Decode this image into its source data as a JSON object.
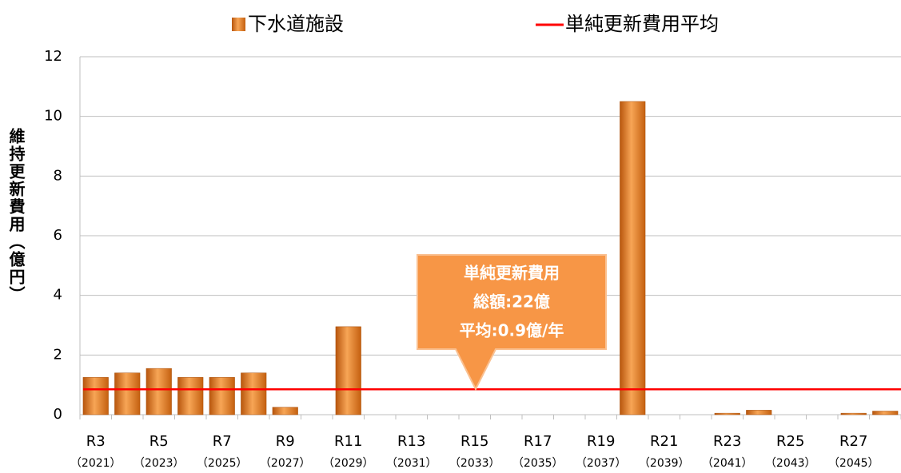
{
  "chart_data": {
    "type": "bar",
    "categories": [
      "R3",
      null,
      "R5",
      null,
      "R7",
      null,
      "R9",
      null,
      "R11",
      null,
      "R13",
      null,
      "R15",
      null,
      "R17",
      null,
      "R19",
      null,
      "R21",
      null,
      "R23",
      null,
      "R25",
      null,
      "R27",
      null
    ],
    "category_years": [
      "（2021）",
      null,
      "（2023）",
      null,
      "（2025）",
      null,
      "（2027）",
      null,
      "（2029）",
      null,
      "（2031）",
      null,
      "（2033）",
      null,
      "（2035）",
      null,
      "（2037）",
      null,
      "（2039）",
      null,
      "（2041）",
      null,
      "（2043）",
      null,
      "（2045）",
      null
    ],
    "series": [
      {
        "name": "下水道施設",
        "color": "#e3741c",
        "values": [
          1.25,
          1.4,
          1.55,
          1.25,
          1.25,
          1.4,
          0.25,
          0,
          2.95,
          0,
          0,
          0,
          0,
          0,
          0,
          0,
          0,
          10.5,
          0,
          0,
          0.05,
          0.15,
          0,
          0,
          0.05,
          0.12
        ]
      }
    ],
    "average_line": {
      "name": "単純更新費用平均",
      "color": "#ff0000",
      "value": 0.85
    },
    "ylabel": "維持更新費用（億円）",
    "annotation": [
      "単純更新費用",
      "総額:22億",
      "平均:0.9億/年"
    ],
    "ylim": [
      0,
      12
    ],
    "yticks": [
      0,
      2,
      4,
      6,
      8,
      10,
      12
    ],
    "grid": true,
    "legend": "top"
  }
}
